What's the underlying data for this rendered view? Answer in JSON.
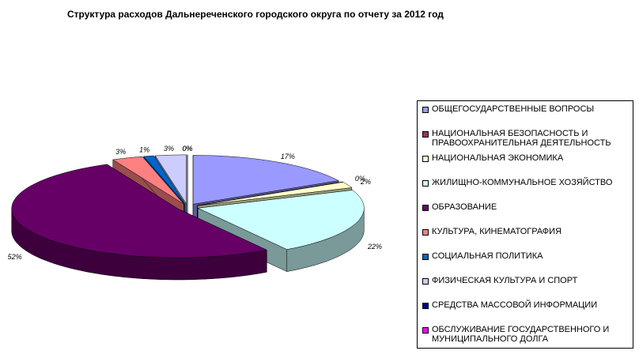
{
  "chart_data": {
    "type": "pie3d",
    "title": "Структура расходов Дальнереченского городского округа по отчету за 2012 год",
    "categories": [
      "ОБЩЕГОСУДАРСТВЕННЫЕ ВОПРОСЫ",
      "НАЦИОНАЛЬНАЯ БЕЗОПАСНОСТЬ И ПРАВООХРАНИТЕЛЬНАЯ ДЕЯТЕЛЬНОСТЬ",
      "НАЦИОНАЛЬНАЯ ЭКОНОМИКА",
      "ЖИЛИЩНО-КОММУНАЛЬНОЕ ХОЗЯЙСТВО",
      "ОБРАЗОВАНИЕ",
      "КУЛЬТУРА, КИНЕМАТОГРАФИЯ",
      "СОЦИАЛЬНАЯ ПОЛИТИКА",
      "ФИЗИЧЕСКАЯ КУЛЬТУРА И СПОРТ",
      "СРЕДСТВА МАССОВОЙ ИНФОРМАЦИИ",
      "ОБСЛУЖИВАНИЕ ГОСУДАРСТВЕННОГО И МУНИЦИПАЛЬНОГО ДОЛГА"
    ],
    "values": [
      17,
      0,
      2,
      22,
      52,
      3,
      1,
      3,
      0,
      0
    ],
    "value_labels": [
      "17%",
      "0%",
      "2%",
      "22%",
      "52%",
      "3%",
      "1%",
      "3%",
      "0%",
      "0%"
    ],
    "colors": [
      "#9999ff",
      "#993366",
      "#ffffcc",
      "#ccffff",
      "#660066",
      "#ff8080",
      "#0066cc",
      "#ccccff",
      "#000080",
      "#ff00ff"
    ],
    "legend": "right"
  }
}
